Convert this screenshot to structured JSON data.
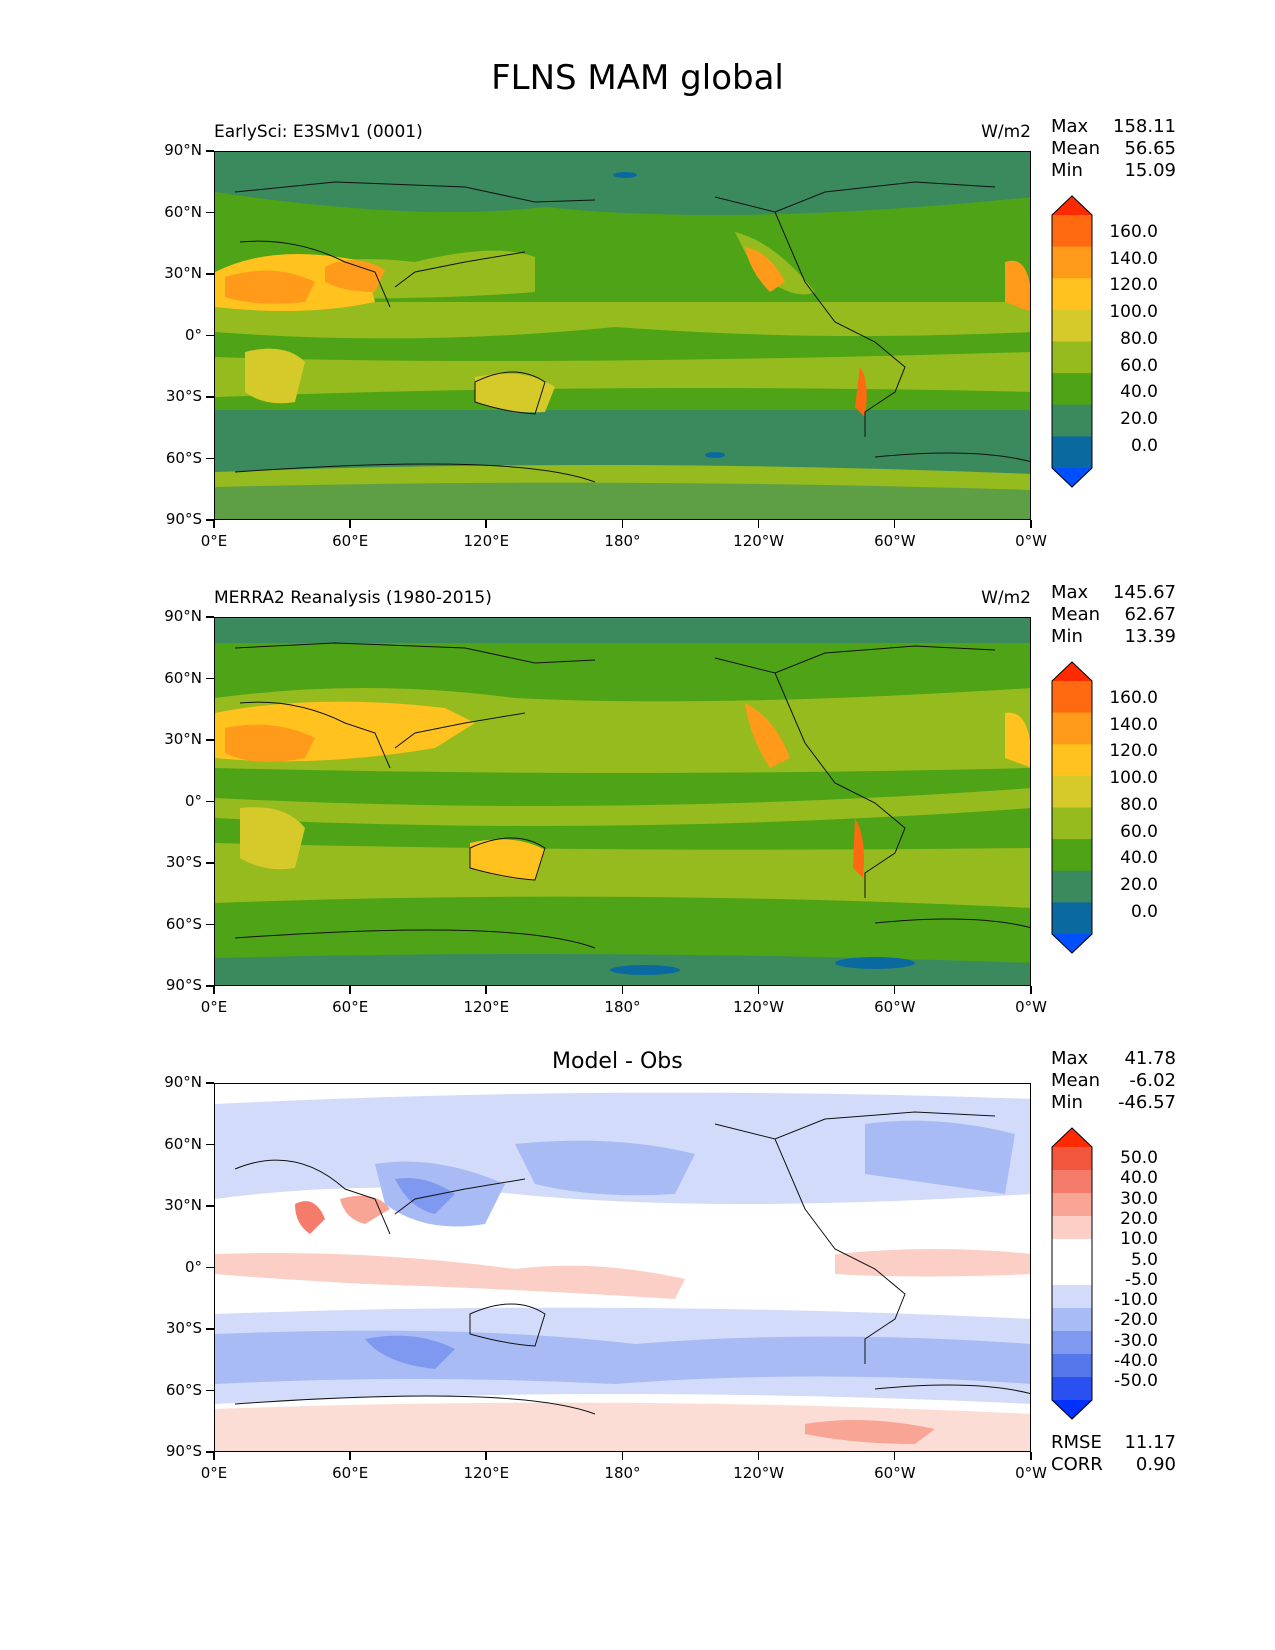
{
  "title": "FLNS MAM global",
  "lat_labels": [
    "90°N",
    "60°N",
    "30°N",
    "0°",
    "30°S",
    "60°S",
    "90°S"
  ],
  "lon_labels": [
    "0°E",
    "60°E",
    "120°E",
    "180°",
    "120°W",
    "60°W",
    "0°W"
  ],
  "panels": [
    {
      "title": "EarlySci: E3SMv1 (0001)",
      "units": "W/m2",
      "stats": {
        "max_label": "Max",
        "max": "158.11",
        "mean_label": "Mean",
        "mean": "56.65",
        "min_label": "Min",
        "min": "15.09"
      },
      "colorbar_labels": [
        "160.0",
        "140.0",
        "120.0",
        "100.0",
        "80.0",
        "60.0",
        "40.0",
        "20.0",
        "0.0"
      ]
    },
    {
      "title": "MERRA2 Reanalysis (1980-2015)",
      "units": "W/m2",
      "stats": {
        "max_label": "Max",
        "max": "145.67",
        "mean_label": "Mean",
        "mean": "62.67",
        "min_label": "Min",
        "min": "13.39"
      },
      "colorbar_labels": [
        "160.0",
        "140.0",
        "120.0",
        "100.0",
        "80.0",
        "60.0",
        "40.0",
        "20.0",
        "0.0"
      ]
    },
    {
      "title": "Model - Obs",
      "units": "",
      "stats": {
        "max_label": "Max",
        "max": "41.78",
        "mean_label": "Mean",
        "mean": "-6.02",
        "min_label": "Min",
        "min": "-46.57"
      },
      "colorbar_labels": [
        "50.0",
        "40.0",
        "30.0",
        "20.0",
        "10.0",
        "5.0",
        "-5.0",
        "-10.0",
        "-20.0",
        "-30.0",
        "-40.0",
        "-50.0"
      ],
      "rmse_label": "RMSE",
      "rmse": "11.17",
      "corr_label": "CORR",
      "corr": "0.90"
    }
  ],
  "colors": {
    "field": [
      "#ff2a00",
      "#ff6a10",
      "#ff9a1a",
      "#ffc21e",
      "#d6c92a",
      "#95bb1f",
      "#4fa317",
      "#3a8a5e",
      "#0a6aa0",
      "#0050ff"
    ],
    "diff": [
      "#ff2a00",
      "#f2573e",
      "#f57c6a",
      "#f8a596",
      "#fbcfc5",
      "#ffffff",
      "#ffffff",
      "#d2dcfa",
      "#a9bbf5",
      "#7f98f0",
      "#5676ec",
      "#2a50f2",
      "#0032ff"
    ]
  }
}
